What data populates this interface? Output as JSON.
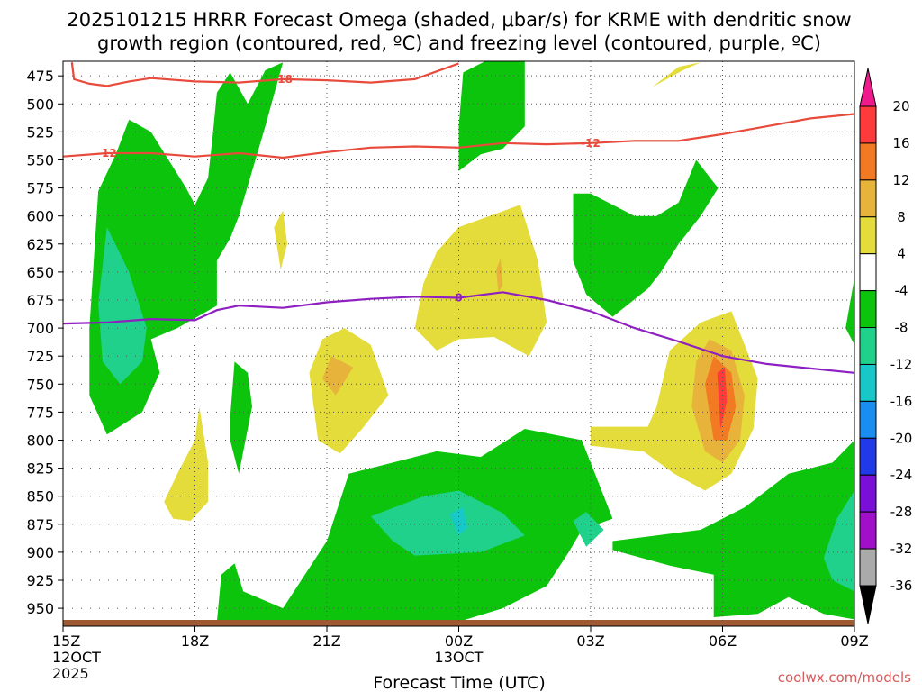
{
  "chart_data": {
    "type": "contour",
    "title": "2025101215 HRRR Forecast Omega (shaded, μbar/s) for KRME with dendritic snow growth region (contoured, red, ºC) and freezing level (contoured, purple, ºC)",
    "title_lines": [
      "2025101215 HRRR Forecast Omega (shaded, μbar/s) for KRME with dendritic snow",
      "growth region (contoured, red, ºC) and freezing level (contoured, purple, ºC)"
    ],
    "xlabel": "Forecast Time (UTC)",
    "credit": "coolwx.com/models",
    "x_range_hours": [
      0,
      18
    ],
    "y_range_mb": [
      462,
      966
    ],
    "y_ticks": [
      475,
      500,
      525,
      550,
      575,
      600,
      625,
      650,
      675,
      700,
      725,
      750,
      775,
      800,
      825,
      850,
      875,
      900,
      925,
      950
    ],
    "x_ticks": [
      {
        "hour": 0,
        "lines": [
          "15Z",
          "12OCT",
          "2025"
        ]
      },
      {
        "hour": 3,
        "lines": [
          "18Z"
        ]
      },
      {
        "hour": 6,
        "lines": [
          "21Z"
        ]
      },
      {
        "hour": 9,
        "lines": [
          "00Z",
          "13OCT"
        ]
      },
      {
        "hour": 12,
        "lines": [
          "03Z"
        ]
      },
      {
        "hour": 15,
        "lines": [
          "06Z"
        ]
      },
      {
        "hour": 18,
        "lines": [
          "09Z"
        ]
      }
    ],
    "colorbar": {
      "levels": [
        20,
        16,
        12,
        8,
        4,
        -4,
        -8,
        -12,
        -16,
        -20,
        -24,
        -28,
        -32,
        -36
      ],
      "colors": [
        "#ff3a3a",
        "#f27a22",
        "#e8b33a",
        "#e4dc3a",
        "#ffffff",
        "#0dc40d",
        "#1fd18a",
        "#18c8c8",
        "#1a8ef0",
        "#1f3ae6",
        "#7a10d8",
        "#a010c8",
        "#aaaaaa",
        "#000000"
      ],
      "top_color": "#ee1b8d",
      "bottom_color": "#000000"
    },
    "contours": [
      {
        "name": "-18",
        "color": "#e84a3c",
        "label": "-18",
        "points": [
          [
            0.2,
            463
          ],
          [
            0.25,
            478
          ],
          [
            0.6,
            482
          ],
          [
            1.0,
            484
          ],
          [
            1.5,
            480
          ],
          [
            2.0,
            477
          ],
          [
            3.0,
            480
          ],
          [
            4.0,
            481
          ],
          [
            5.0,
            478
          ],
          [
            6.0,
            479
          ],
          [
            7.0,
            481
          ],
          [
            8.0,
            478
          ],
          [
            9.0,
            464
          ]
        ]
      },
      {
        "name": "-12",
        "color": "#e84a3c",
        "label": "-12",
        "points": [
          [
            0.0,
            547
          ],
          [
            1.0,
            544
          ],
          [
            2.0,
            544
          ],
          [
            3.0,
            547
          ],
          [
            4.0,
            544
          ],
          [
            5.0,
            548
          ],
          [
            6.0,
            543
          ],
          [
            7.0,
            539
          ],
          [
            8.0,
            538
          ],
          [
            9.0,
            539
          ],
          [
            10.0,
            535
          ],
          [
            11.0,
            536
          ],
          [
            12.0,
            535
          ],
          [
            13.0,
            533
          ],
          [
            14.0,
            533
          ],
          [
            15.0,
            527
          ],
          [
            16.0,
            520
          ],
          [
            17.0,
            513
          ],
          [
            18.0,
            509
          ]
        ]
      },
      {
        "name": "0",
        "color": "#8e1fc0",
        "label": "0",
        "points": [
          [
            0.0,
            696
          ],
          [
            1.0,
            695
          ],
          [
            2.0,
            692
          ],
          [
            3.0,
            693
          ],
          [
            3.5,
            684
          ],
          [
            4.0,
            680
          ],
          [
            5.0,
            682
          ],
          [
            6.0,
            677
          ],
          [
            7.0,
            674
          ],
          [
            8.0,
            672
          ],
          [
            9.0,
            673
          ],
          [
            10.0,
            668
          ],
          [
            11.0,
            675
          ],
          [
            12.0,
            685
          ],
          [
            13.0,
            700
          ],
          [
            14.0,
            712
          ],
          [
            15.0,
            725
          ],
          [
            16.0,
            732
          ],
          [
            17.0,
            736
          ],
          [
            18.0,
            740
          ]
        ]
      }
    ],
    "shaded_regions": [
      {
        "value": -5,
        "color": "#0dc40d",
        "points": [
          [
            0.6,
            700
          ],
          [
            0.8,
            578
          ],
          [
            1.2,
            545
          ],
          [
            1.5,
            514
          ],
          [
            2.0,
            525
          ],
          [
            2.8,
            575
          ],
          [
            3.0,
            590
          ],
          [
            3.3,
            566
          ],
          [
            3.4,
            530
          ],
          [
            3.5,
            490
          ],
          [
            3.8,
            472
          ],
          [
            4.2,
            500
          ],
          [
            4.6,
            470
          ],
          [
            5.0,
            463
          ],
          [
            4.6,
            520
          ],
          [
            4.0,
            600
          ],
          [
            3.8,
            620
          ],
          [
            3.5,
            640
          ],
          [
            3.5,
            680
          ],
          [
            2.6,
            700
          ],
          [
            2.0,
            710
          ],
          [
            2.2,
            740
          ],
          [
            1.8,
            775
          ],
          [
            1.0,
            795
          ],
          [
            0.6,
            760
          ]
        ]
      },
      {
        "value": -9,
        "color": "#1fd18a",
        "points": [
          [
            0.8,
            678
          ],
          [
            1.0,
            610
          ],
          [
            1.5,
            650
          ],
          [
            1.9,
            700
          ],
          [
            1.8,
            730
          ],
          [
            1.3,
            750
          ],
          [
            0.9,
            730
          ]
        ]
      },
      {
        "value": -5,
        "color": "#0dc40d",
        "points": [
          [
            9.0,
            520
          ],
          [
            9.1,
            472
          ],
          [
            9.6,
            462
          ],
          [
            10.5,
            462
          ],
          [
            10.5,
            520
          ],
          [
            10.0,
            540
          ],
          [
            9.5,
            545
          ],
          [
            9.0,
            560
          ]
        ]
      },
      {
        "value": -5,
        "color": "#0dc40d",
        "points": [
          [
            11.6,
            580
          ],
          [
            12.0,
            580
          ],
          [
            13.0,
            600
          ],
          [
            13.5,
            600
          ],
          [
            14.0,
            588
          ],
          [
            14.4,
            550
          ],
          [
            14.9,
            575
          ],
          [
            14.5,
            600
          ],
          [
            14.0,
            625
          ],
          [
            13.6,
            650
          ],
          [
            13.3,
            665
          ],
          [
            12.5,
            690
          ],
          [
            11.9,
            670
          ],
          [
            11.6,
            640
          ]
        ]
      },
      {
        "value": -5,
        "color": "#0dc40d",
        "points": [
          [
            3.8,
            780
          ],
          [
            3.9,
            730
          ],
          [
            4.2,
            740
          ],
          [
            4.3,
            770
          ],
          [
            4.0,
            830
          ],
          [
            3.8,
            800
          ]
        ]
      },
      {
        "value": -5,
        "color": "#0dc40d",
        "points": [
          [
            3.5,
            962
          ],
          [
            3.6,
            920
          ],
          [
            3.9,
            910
          ],
          [
            4.1,
            935
          ],
          [
            5.0,
            950
          ],
          [
            6.0,
            890
          ],
          [
            6.5,
            830
          ],
          [
            7.5,
            820
          ],
          [
            8.5,
            810
          ],
          [
            9.5,
            815
          ],
          [
            10.5,
            790
          ],
          [
            11.8,
            800
          ],
          [
            12.5,
            870
          ],
          [
            11.8,
            880
          ],
          [
            11.5,
            900
          ],
          [
            11.0,
            930
          ],
          [
            10.0,
            950
          ],
          [
            9.0,
            962
          ]
        ]
      },
      {
        "value": -9,
        "color": "#1fd18a",
        "points": [
          [
            7.0,
            868
          ],
          [
            8.2,
            850
          ],
          [
            9.0,
            845
          ],
          [
            10.0,
            865
          ],
          [
            10.5,
            885
          ],
          [
            9.5,
            900
          ],
          [
            8.0,
            903
          ],
          [
            7.5,
            890
          ]
        ]
      },
      {
        "value": -13,
        "color": "#18c8c8",
        "points": [
          [
            8.8,
            866
          ],
          [
            9.1,
            860
          ],
          [
            9.2,
            878
          ],
          [
            9.0,
            885
          ]
        ]
      },
      {
        "value": -9,
        "color": "#1fd18a",
        "points": [
          [
            11.6,
            872
          ],
          [
            11.9,
            864
          ],
          [
            12.3,
            880
          ],
          [
            11.9,
            895
          ]
        ]
      },
      {
        "value": -5,
        "color": "#0dc40d",
        "points": [
          [
            12.5,
            890
          ],
          [
            13.5,
            885
          ],
          [
            14.5,
            880
          ],
          [
            15.5,
            860
          ],
          [
            16.5,
            830
          ],
          [
            17.5,
            820
          ],
          [
            18.0,
            800
          ],
          [
            18.0,
            960
          ],
          [
            17.3,
            955
          ],
          [
            16.5,
            940
          ],
          [
            15.8,
            955
          ],
          [
            14.8,
            958
          ],
          [
            14.8,
            920
          ],
          [
            13.8,
            912
          ],
          [
            12.5,
            898
          ]
        ]
      },
      {
        "value": -9,
        "color": "#1fd18a",
        "points": [
          [
            17.3,
            905
          ],
          [
            17.6,
            870
          ],
          [
            18.0,
            845
          ],
          [
            18.0,
            935
          ],
          [
            17.5,
            925
          ]
        ]
      },
      {
        "value": -5,
        "color": "#0dc40d",
        "points": [
          [
            17.8,
            700
          ],
          [
            18.0,
            655
          ],
          [
            18.0,
            715
          ]
        ]
      },
      {
        "value": 5,
        "color": "#e4dc3a",
        "points": [
          [
            2.3,
            855
          ],
          [
            2.6,
            830
          ],
          [
            3.0,
            800
          ],
          [
            3.1,
            770
          ],
          [
            3.3,
            820
          ],
          [
            3.3,
            855
          ],
          [
            2.9,
            872
          ],
          [
            2.5,
            870
          ]
        ]
      },
      {
        "value": 5,
        "color": "#e4dc3a",
        "points": [
          [
            4.8,
            610
          ],
          [
            5.0,
            595
          ],
          [
            5.1,
            625
          ],
          [
            4.95,
            648
          ]
        ]
      },
      {
        "value": 5,
        "color": "#e4dc3a",
        "points": [
          [
            5.6,
            740
          ],
          [
            5.9,
            710
          ],
          [
            6.4,
            700
          ],
          [
            7.0,
            715
          ],
          [
            7.4,
            760
          ],
          [
            6.8,
            790
          ],
          [
            6.3,
            812
          ],
          [
            5.8,
            800
          ]
        ]
      },
      {
        "value": 9,
        "color": "#e8b33a",
        "points": [
          [
            5.9,
            745
          ],
          [
            6.1,
            725
          ],
          [
            6.6,
            735
          ],
          [
            6.2,
            760
          ]
        ]
      },
      {
        "value": 5,
        "color": "#e4dc3a",
        "points": [
          [
            8.0,
            700
          ],
          [
            8.2,
            660
          ],
          [
            8.5,
            632
          ],
          [
            9.0,
            610
          ],
          [
            10.4,
            590
          ],
          [
            10.8,
            640
          ],
          [
            11.0,
            695
          ],
          [
            10.6,
            725
          ],
          [
            9.8,
            708
          ],
          [
            9.0,
            710
          ],
          [
            8.5,
            720
          ]
        ]
      },
      {
        "value": 9,
        "color": "#e8b33a",
        "points": [
          [
            9.85,
            648
          ],
          [
            9.95,
            638
          ],
          [
            10.0,
            662
          ],
          [
            9.9,
            668
          ]
        ]
      },
      {
        "value": 5,
        "color": "#e4dc3a",
        "points": [
          [
            13.4,
            485
          ],
          [
            14.0,
            467
          ],
          [
            14.5,
            463
          ],
          [
            14.1,
            470
          ]
        ]
      },
      {
        "value": 5,
        "color": "#e4dc3a",
        "points": [
          [
            12.0,
            805
          ],
          [
            12.0,
            788
          ],
          [
            13.3,
            788
          ],
          [
            13.5,
            770
          ],
          [
            13.8,
            720
          ],
          [
            14.5,
            695
          ],
          [
            15.2,
            685
          ],
          [
            15.8,
            745
          ],
          [
            15.7,
            790
          ],
          [
            15.2,
            830
          ],
          [
            14.6,
            845
          ],
          [
            13.9,
            830
          ],
          [
            13.2,
            810
          ]
        ]
      },
      {
        "value": 9,
        "color": "#e8b33a",
        "points": [
          [
            14.4,
            730
          ],
          [
            14.7,
            710
          ],
          [
            15.2,
            720
          ],
          [
            15.5,
            760
          ],
          [
            15.4,
            800
          ],
          [
            15.0,
            820
          ],
          [
            14.6,
            810
          ],
          [
            14.3,
            770
          ]
        ]
      },
      {
        "value": 13,
        "color": "#f27a22",
        "points": [
          [
            14.6,
            750
          ],
          [
            14.8,
            725
          ],
          [
            15.2,
            740
          ],
          [
            15.3,
            770
          ],
          [
            15.1,
            800
          ],
          [
            14.8,
            800
          ]
        ]
      },
      {
        "value": 17,
        "color": "#ff3a3a",
        "points": [
          [
            14.88,
            740
          ],
          [
            15.05,
            735
          ],
          [
            15.1,
            765
          ],
          [
            14.95,
            790
          ]
        ]
      }
    ],
    "ground_color": "#a05a32"
  }
}
